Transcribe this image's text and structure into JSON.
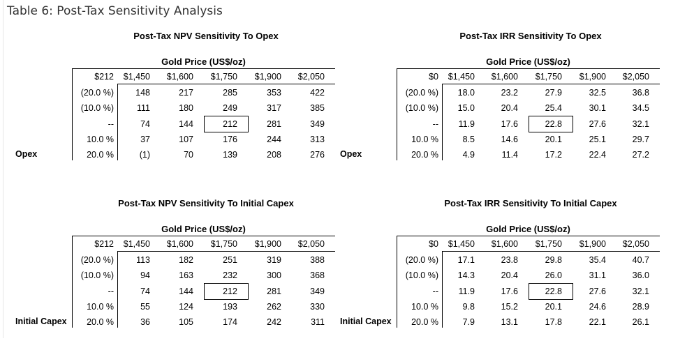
{
  "page_title": "Table 6: Post-Tax Sensitivity Analysis",
  "tables": [
    {
      "title": "Post-Tax NPV Sensitivity To Opex",
      "column_group": "Gold Price (US$/oz)",
      "corner": "$212",
      "columns": [
        "$1,450",
        "$1,600",
        "$1,750",
        "$1,900",
        "$2,050"
      ],
      "row_variable": "Opex",
      "rows": [
        {
          "label": "(20.0 %)",
          "values": [
            "148",
            "217",
            "285",
            "353",
            "422"
          ]
        },
        {
          "label": "(10.0 %)",
          "values": [
            "111",
            "180",
            "249",
            "317",
            "385"
          ]
        },
        {
          "label": "--",
          "values": [
            "74",
            "144",
            "212",
            "281",
            "349"
          ]
        },
        {
          "label": "10.0 %",
          "values": [
            "37",
            "107",
            "176",
            "244",
            "313"
          ]
        },
        {
          "label": "20.0 %",
          "values": [
            "(1)",
            "70",
            "139",
            "208",
            "276"
          ]
        }
      ]
    },
    {
      "title": "Post-Tax IRR Sensitivity To Opex",
      "column_group": "Gold Price (US$/oz)",
      "corner": "$0",
      "columns": [
        "$1,450",
        "$1,600",
        "$1,750",
        "$1,900",
        "$2,050"
      ],
      "row_variable": "Opex",
      "rows": [
        {
          "label": "(20.0 %)",
          "values": [
            "18.0",
            "23.2",
            "27.9",
            "32.5",
            "36.8"
          ]
        },
        {
          "label": "(10.0 %)",
          "values": [
            "15.0",
            "20.4",
            "25.4",
            "30.1",
            "34.5"
          ]
        },
        {
          "label": "--",
          "values": [
            "11.9",
            "17.6",
            "22.8",
            "27.6",
            "32.1"
          ]
        },
        {
          "label": "10.0 %",
          "values": [
            "8.5",
            "14.6",
            "20.1",
            "25.1",
            "29.7"
          ]
        },
        {
          "label": "20.0 %",
          "values": [
            "4.9",
            "11.4",
            "17.2",
            "22.4",
            "27.2"
          ]
        }
      ]
    },
    {
      "title": "Post-Tax NPV Sensitivity To Initial Capex",
      "column_group": "Gold Price (US$/oz)",
      "corner": "$212",
      "columns": [
        "$1,450",
        "$1,600",
        "$1,750",
        "$1,900",
        "$2,050"
      ],
      "row_variable": "Initial Capex",
      "rows": [
        {
          "label": "(20.0 %)",
          "values": [
            "113",
            "182",
            "251",
            "319",
            "388"
          ]
        },
        {
          "label": "(10.0 %)",
          "values": [
            "94",
            "163",
            "232",
            "300",
            "368"
          ]
        },
        {
          "label": "--",
          "values": [
            "74",
            "144",
            "212",
            "281",
            "349"
          ]
        },
        {
          "label": "10.0 %",
          "values": [
            "55",
            "124",
            "193",
            "262",
            "330"
          ]
        },
        {
          "label": "20.0 %",
          "values": [
            "36",
            "105",
            "174",
            "242",
            "311"
          ]
        }
      ]
    },
    {
      "title": "Post-Tax IRR Sensitivity To Initial Capex",
      "column_group": "Gold Price (US$/oz)",
      "corner": "$0",
      "columns": [
        "$1,450",
        "$1,600",
        "$1,750",
        "$1,900",
        "$2,050"
      ],
      "row_variable": "Initial Capex",
      "rows": [
        {
          "label": "(20.0 %)",
          "values": [
            "17.1",
            "23.8",
            "29.8",
            "35.4",
            "40.7"
          ]
        },
        {
          "label": "(10.0 %)",
          "values": [
            "14.3",
            "20.4",
            "26.0",
            "31.1",
            "36.0"
          ]
        },
        {
          "label": "--",
          "values": [
            "11.9",
            "17.6",
            "22.8",
            "27.6",
            "32.1"
          ]
        },
        {
          "label": "10.0 %",
          "values": [
            "9.8",
            "15.2",
            "20.1",
            "24.6",
            "28.9"
          ]
        },
        {
          "label": "20.0 %",
          "values": [
            "7.9",
            "13.1",
            "17.8",
            "22.1",
            "26.1"
          ]
        }
      ]
    }
  ]
}
